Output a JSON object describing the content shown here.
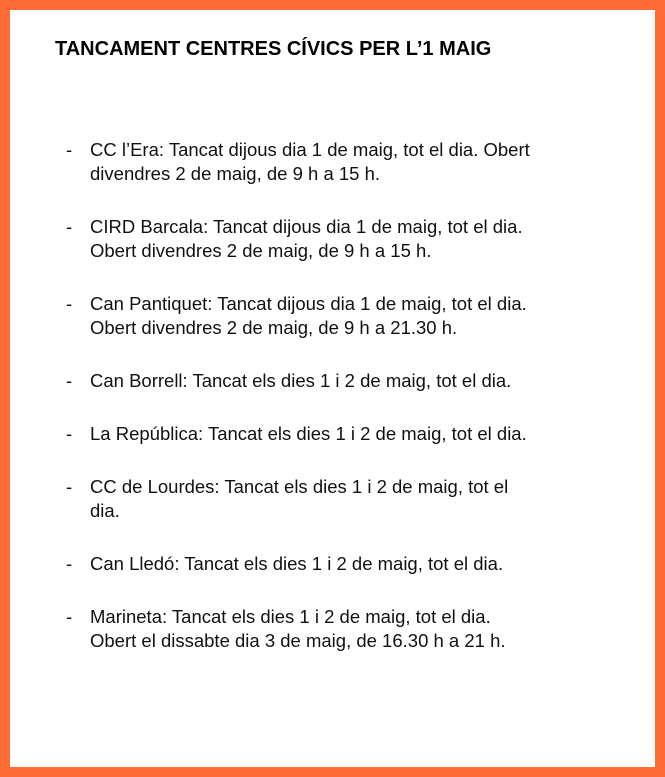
{
  "title": "TANCAMENT CENTRES CÍVICS PER L’1 MAIG",
  "accent_color": "#FF6B35",
  "bullet": "-",
  "items": [
    {
      "lines": [
        "CC l’Era: Tancat dijous dia 1 de maig, tot el dia. Obert",
        "divendres 2 de maig, de 9 h a 15 h."
      ]
    },
    {
      "lines": [
        "CIRD Barcala: Tancat dijous dia 1 de maig, tot el dia.",
        "Obert divendres 2 de maig, de 9 h a 15 h."
      ]
    },
    {
      "lines": [
        "Can Pantiquet: Tancat dijous dia 1 de maig, tot el dia.",
        "Obert divendres 2 de maig, de 9 h a 21.30 h."
      ]
    },
    {
      "lines": [
        "Can Borrell: Tancat els dies 1 i 2 de maig, tot el dia."
      ]
    },
    {
      "lines": [
        "La República: Tancat els dies 1 i 2 de maig, tot el dia."
      ]
    },
    {
      "lines": [
        "CC de Lourdes: Tancat els dies 1 i 2 de maig, tot el",
        "dia."
      ]
    },
    {
      "lines": [
        "Can Lledó: Tancat els dies 1 i 2 de maig, tot el dia."
      ]
    },
    {
      "lines": [
        "Marineta: Tancat els dies 1 i 2 de maig, tot el dia.",
        "Obert el dissabte dia 3 de maig, de 16.30 h a 21 h."
      ]
    }
  ]
}
